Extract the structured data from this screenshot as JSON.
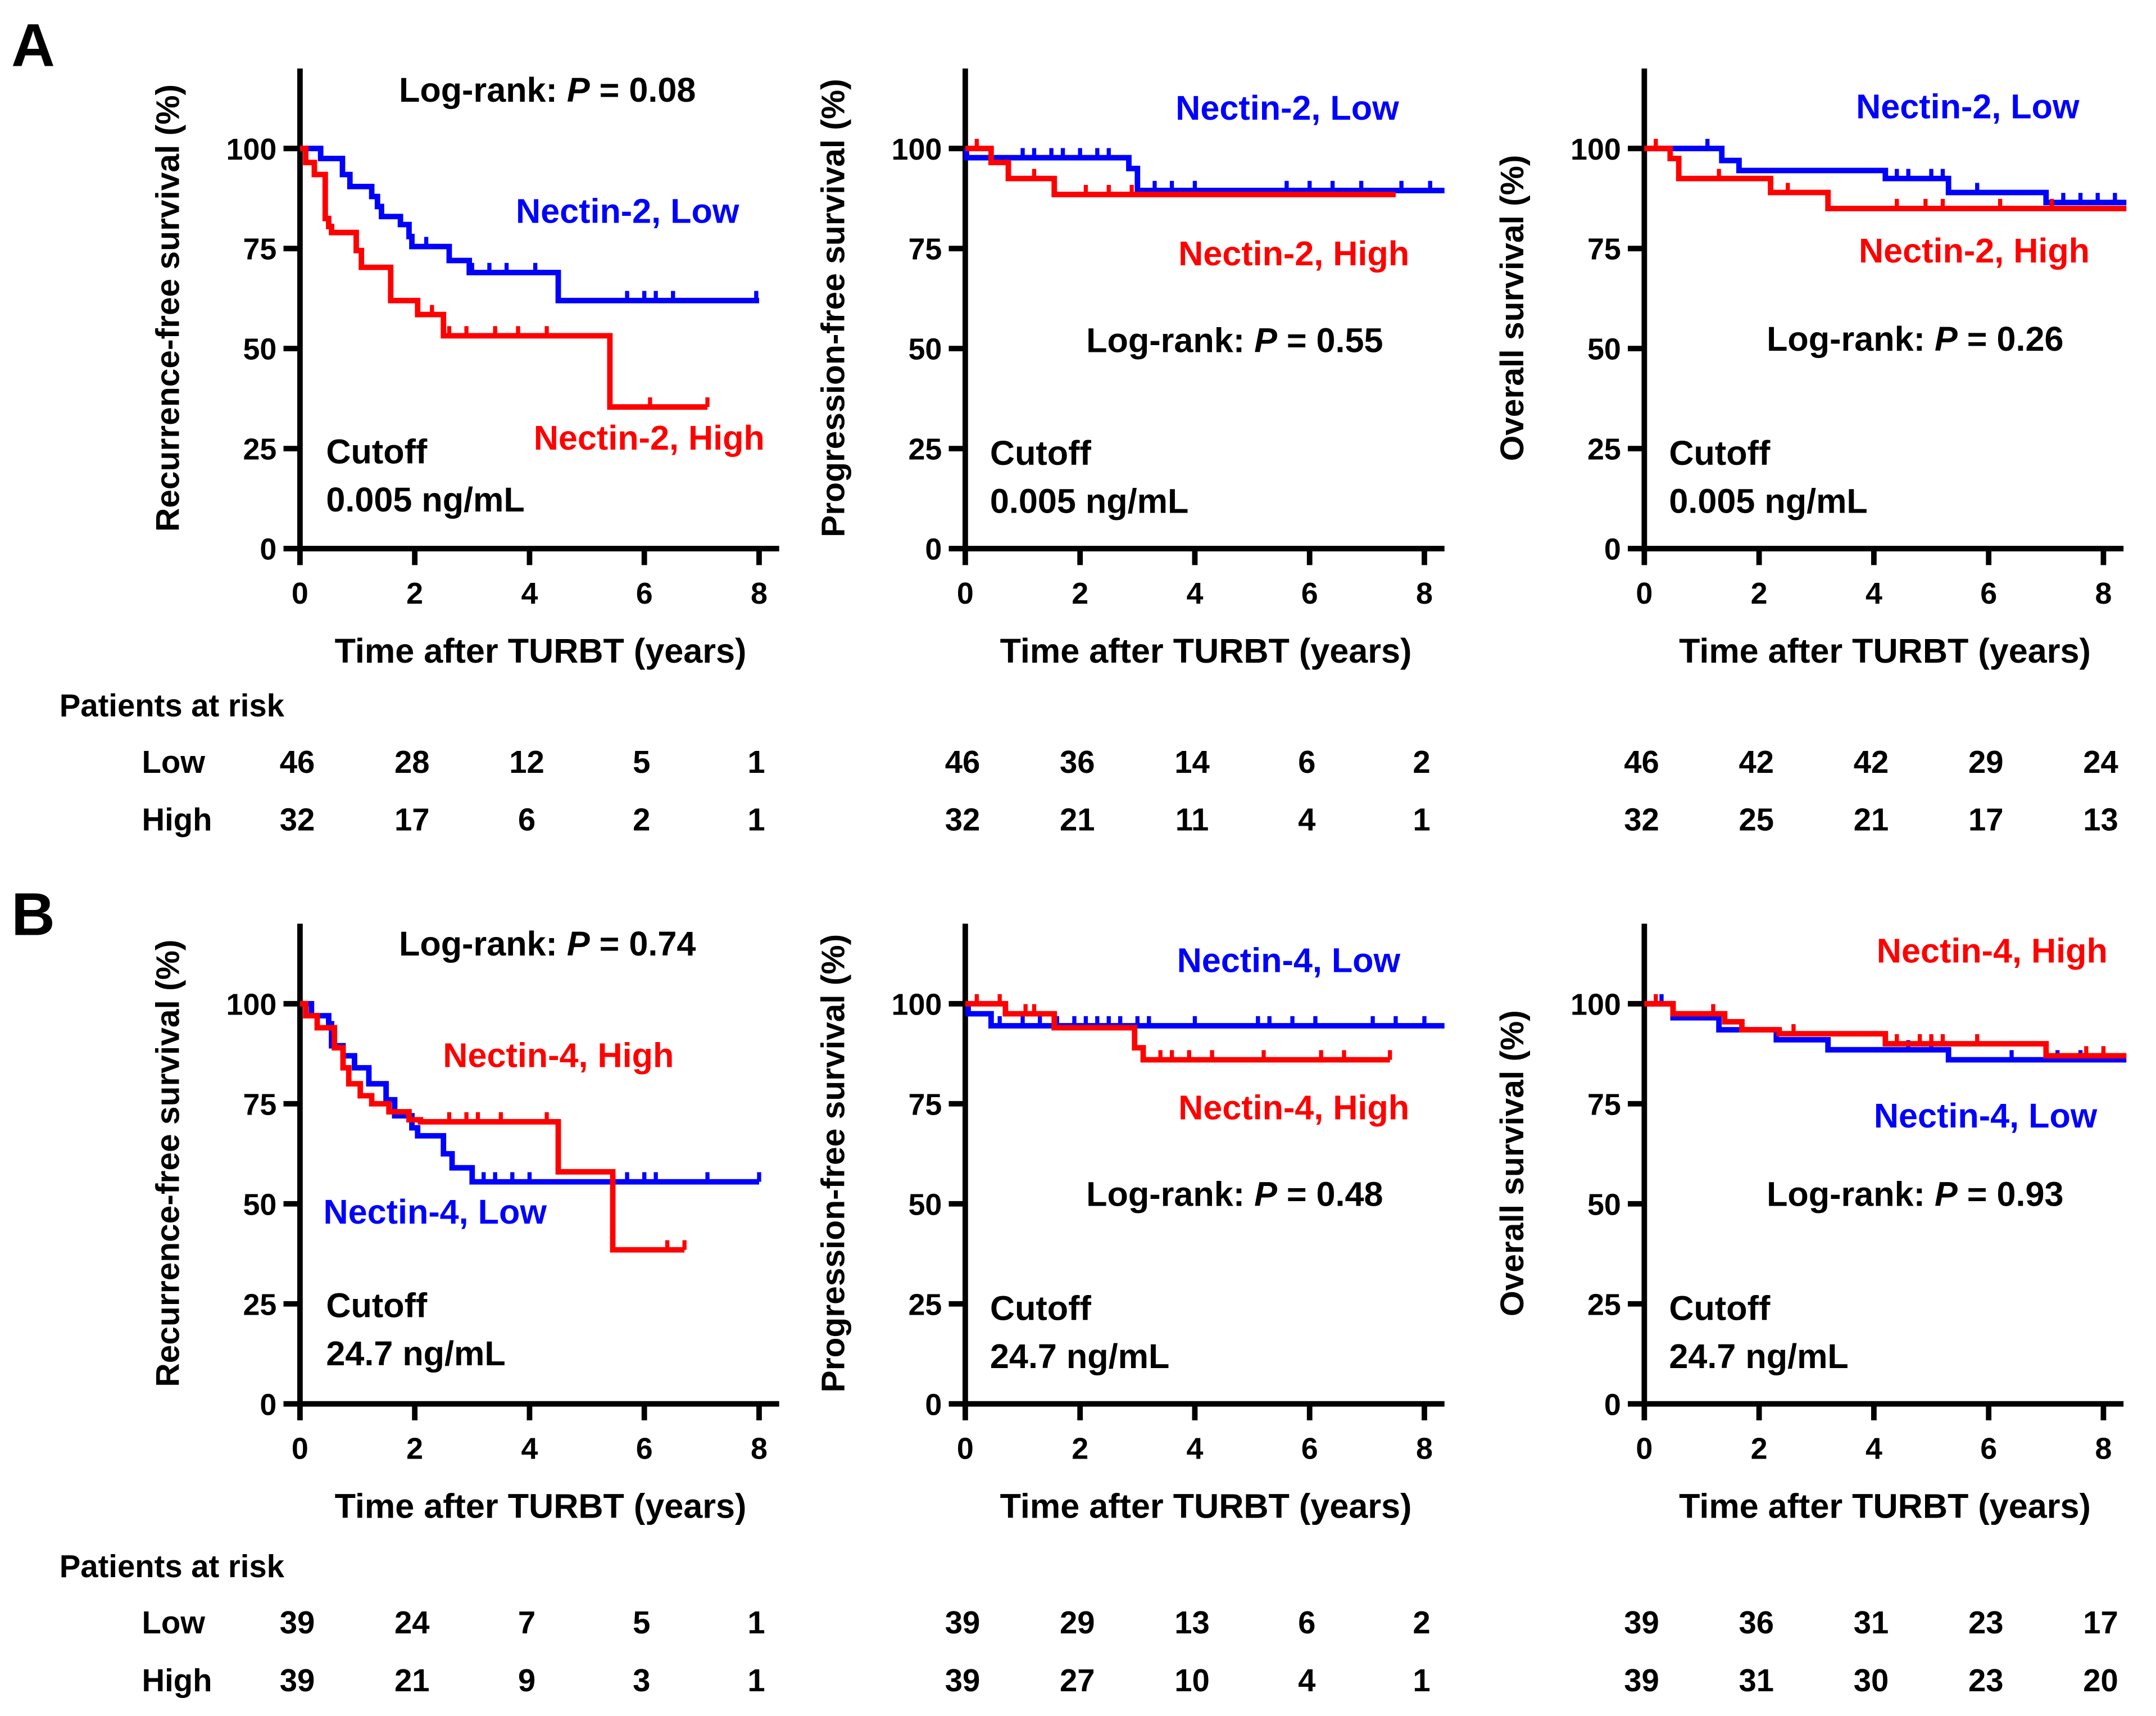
{
  "colors": {
    "low": "#0000ff",
    "high": "#ff0000",
    "axis": "#000000"
  },
  "panel_letters": [
    "A",
    "B"
  ],
  "chart_data": [
    {
      "type": "line",
      "row": 0,
      "col": 0,
      "ylabel": "Recurrence-free survival (%)",
      "xlabel": "Time after TURBT (years)",
      "xlim": [
        0,
        8.35
      ],
      "ylim": [
        0,
        120
      ],
      "xticks": [
        "0",
        "2",
        "4",
        "6",
        "8"
      ],
      "yticks": [
        "0",
        "25",
        "50",
        "75",
        "100"
      ],
      "logrank": {
        "prefix": "Log-rank: ",
        "p": "P",
        "suffix": " = 0.08"
      },
      "cutoff": [
        "Cutoff",
        "0.005 ng/mL"
      ],
      "series": [
        {
          "name": "Nectin-2, Low",
          "group": "low",
          "steps": [
            [
              0,
              100
            ],
            [
              0.36,
              97.5
            ],
            [
              0.74,
              93.5
            ],
            [
              0.87,
              90.5
            ],
            [
              1.25,
              88
            ],
            [
              1.35,
              85.5
            ],
            [
              1.42,
              83
            ],
            [
              1.75,
              81
            ],
            [
              1.9,
              78
            ],
            [
              1.95,
              75.5
            ],
            [
              2.6,
              72
            ],
            [
              2.95,
              69
            ],
            [
              4.5,
              62
            ]
          ],
          "end": 8.0,
          "censored": [
            2.2,
            2.6,
            3.0,
            3.3,
            3.6,
            4.1,
            5.7,
            6.0,
            6.2,
            6.5,
            7.95
          ]
        },
        {
          "name": "Nectin-2, High",
          "group": "high",
          "steps": [
            [
              0,
              100
            ],
            [
              0.1,
              96.5
            ],
            [
              0.25,
              93.5
            ],
            [
              0.44,
              82.5
            ],
            [
              0.5,
              80.5
            ],
            [
              0.55,
              79
            ],
            [
              0.98,
              74.5
            ],
            [
              1.07,
              70.3
            ],
            [
              1.58,
              62
            ],
            [
              2.05,
              58.5
            ],
            [
              2.5,
              53.2
            ],
            [
              5.4,
              35.4
            ]
          ],
          "end": 7.1,
          "censored": [
            2.3,
            2.6,
            2.9,
            3.4,
            3.8,
            4.3,
            6.1,
            7.1
          ]
        }
      ]
    },
    {
      "type": "line",
      "row": 0,
      "col": 1,
      "ylabel": "Progression-free survival (%)",
      "xlabel": "Time after TURBT (years)",
      "xlim": [
        0,
        8.35
      ],
      "ylim": [
        0,
        120
      ],
      "xticks": [
        "0",
        "2",
        "4",
        "6",
        "8"
      ],
      "yticks": [
        "0",
        "25",
        "50",
        "75",
        "100"
      ],
      "logrank": {
        "prefix": "Log-rank: ",
        "p": "P",
        "suffix": " = 0.55"
      },
      "cutoff": [
        "Cutoff",
        "0.005 ng/mL"
      ],
      "series": [
        {
          "name": "Nectin-2, Low",
          "group": "low",
          "steps": [
            [
              0,
              100
            ],
            [
              0.02,
              97.7
            ],
            [
              2.85,
              95
            ],
            [
              3.0,
              89.5
            ]
          ],
          "end": 8.35,
          "censored": [
            1.0,
            1.2,
            1.5,
            1.7,
            2.0,
            2.3,
            2.5,
            3.3,
            3.6,
            4.0,
            5.6,
            6.0,
            6.4,
            6.9,
            7.6,
            8.1
          ]
        },
        {
          "name": "Nectin-2, High",
          "group": "high",
          "steps": [
            [
              0,
              100
            ],
            [
              0.45,
              96.5
            ],
            [
              0.75,
              92.5
            ],
            [
              1.55,
              88.5
            ]
          ],
          "end": 7.5,
          "censored": [
            0.2,
            1.2,
            2.1,
            2.5,
            2.9
          ]
        }
      ]
    },
    {
      "type": "line",
      "row": 0,
      "col": 2,
      "ylabel": "Overall survival (%)",
      "xlabel": "Time after TURBT (years)",
      "xlim": [
        0,
        8.35
      ],
      "ylim": [
        0,
        120
      ],
      "xticks": [
        "0",
        "2",
        "4",
        "6",
        "8"
      ],
      "yticks": [
        "0",
        "25",
        "50",
        "75",
        "100"
      ],
      "logrank": {
        "prefix": "Log-rank: ",
        "p": "P",
        "suffix": " = 0.26"
      },
      "cutoff": [
        "Cutoff",
        "0.005 ng/mL"
      ],
      "series": [
        {
          "name": "Nectin-2, Low",
          "group": "low",
          "steps": [
            [
              0,
              100
            ],
            [
              1.35,
              97
            ],
            [
              1.65,
              94.5
            ],
            [
              4.2,
              92.5
            ],
            [
              5.3,
              89
            ],
            [
              7.0,
              86.5
            ]
          ],
          "end": 8.4,
          "censored": [
            1.1,
            4.4,
            4.6,
            5.0,
            5.2,
            5.8,
            7.3,
            7.6,
            7.9,
            8.2
          ]
        },
        {
          "name": "Nectin-2, High",
          "group": "high",
          "steps": [
            [
              0,
              100
            ],
            [
              0.45,
              97.5
            ],
            [
              0.6,
              92.5
            ],
            [
              2.2,
              89
            ],
            [
              3.2,
              85
            ]
          ],
          "end": 8.4,
          "censored": [
            0.2,
            1.3,
            2.5,
            4.4,
            4.9,
            5.2,
            6.2,
            7.1
          ]
        }
      ]
    },
    {
      "type": "line",
      "row": 1,
      "col": 0,
      "ylabel": "Recurrence-free survival (%)",
      "xlabel": "Time after TURBT (years)",
      "xlim": [
        0,
        8.35
      ],
      "ylim": [
        0,
        120
      ],
      "xticks": [
        "0",
        "2",
        "4",
        "6",
        "8"
      ],
      "yticks": [
        "0",
        "25",
        "50",
        "75",
        "100"
      ],
      "logrank": {
        "prefix": "Log-rank: ",
        "p": "P",
        "suffix": " = 0.74"
      },
      "cutoff": [
        "Cutoff",
        "24.7 ng/mL"
      ],
      "series": [
        {
          "name": "Nectin-4, Low",
          "group": "low",
          "steps": [
            [
              0,
              100
            ],
            [
              0.2,
              97
            ],
            [
              0.5,
              95
            ],
            [
              0.55,
              89.5
            ],
            [
              0.75,
              87
            ],
            [
              0.95,
              84
            ],
            [
              1.2,
              80
            ],
            [
              1.5,
              76
            ],
            [
              1.65,
              72
            ],
            [
              1.95,
              69
            ],
            [
              2.05,
              67
            ],
            [
              2.5,
              62.5
            ],
            [
              2.65,
              59
            ],
            [
              3.0,
              55.5
            ]
          ],
          "end": 8.0,
          "censored": [
            3.2,
            3.4,
            3.7,
            4.0,
            5.7,
            6.0,
            6.2,
            7.1,
            8.0
          ]
        },
        {
          "name": "Nectin-4, High",
          "group": "high",
          "steps": [
            [
              0,
              100
            ],
            [
              0.1,
              97
            ],
            [
              0.3,
              94
            ],
            [
              0.6,
              89
            ],
            [
              0.75,
              84
            ],
            [
              0.85,
              80
            ],
            [
              1.05,
              77
            ],
            [
              1.25,
              75
            ],
            [
              1.55,
              73
            ],
            [
              1.9,
              71
            ],
            [
              2.1,
              70.5
            ],
            [
              4.5,
              58
            ],
            [
              5.45,
              38.5
            ]
          ],
          "end": 6.7,
          "censored": [
            2.6,
            2.9,
            3.1,
            3.5,
            4.3,
            6.4,
            6.7
          ]
        }
      ]
    },
    {
      "type": "line",
      "row": 1,
      "col": 1,
      "ylabel": "Progression-free survival (%)",
      "xlabel": "Time after TURBT (years)",
      "xlim": [
        0,
        8.35
      ],
      "ylim": [
        0,
        120
      ],
      "xticks": [
        "0",
        "2",
        "4",
        "6",
        "8"
      ],
      "yticks": [
        "0",
        "25",
        "50",
        "75",
        "100"
      ],
      "logrank": {
        "prefix": "Log-rank: ",
        "p": "P",
        "suffix": " = 0.48"
      },
      "cutoff": [
        "Cutoff",
        "24.7 ng/mL"
      ],
      "series": [
        {
          "name": "Nectin-4, Low",
          "group": "low",
          "steps": [
            [
              0,
              100
            ],
            [
              0.05,
              97.5
            ],
            [
              0.45,
              94.5
            ]
          ],
          "end": 8.35,
          "censored": [
            0.6,
            1.0,
            1.3,
            1.6,
            1.9,
            2.1,
            2.3,
            2.5,
            2.7,
            3.0,
            3.2,
            4.0,
            5.1,
            5.3,
            5.7,
            6.1,
            7.1,
            7.5,
            8.0
          ]
        },
        {
          "name": "Nectin-4, High",
          "group": "high",
          "steps": [
            [
              0,
              100
            ],
            [
              0.7,
              97.5
            ],
            [
              1.55,
              94
            ],
            [
              2.95,
              89
            ],
            [
              3.1,
              86
            ]
          ],
          "end": 7.4,
          "censored": [
            0.2,
            0.6,
            1.05,
            1.2,
            3.4,
            3.6,
            3.9,
            4.3,
            5.2,
            6.2,
            6.6,
            7.4
          ]
        }
      ]
    },
    {
      "type": "line",
      "row": 1,
      "col": 2,
      "ylabel": "Overall survival (%)",
      "xlabel": "Time after TURBT (years)",
      "xlim": [
        0,
        8.35
      ],
      "ylim": [
        0,
        120
      ],
      "xticks": [
        "0",
        "2",
        "4",
        "6",
        "8"
      ],
      "yticks": [
        "0",
        "25",
        "50",
        "75",
        "100"
      ],
      "logrank": {
        "prefix": "Log-rank: ",
        "p": "P",
        "suffix": " = 0.93"
      },
      "cutoff": [
        "Cutoff",
        "24.7 ng/mL"
      ],
      "series": [
        {
          "name": "Nectin-4, Low",
          "group": "low",
          "steps": [
            [
              0,
              100
            ],
            [
              0.5,
              96.5
            ],
            [
              1.3,
              93.5
            ],
            [
              2.3,
              91
            ],
            [
              3.2,
              88.5
            ],
            [
              5.3,
              86
            ]
          ],
          "end": 8.4,
          "censored": [
            0.3,
            4.6,
            5.0,
            6.4,
            7.2,
            7.6,
            8.0
          ]
        },
        {
          "name": "Nectin-4, High",
          "group": "high",
          "steps": [
            [
              0,
              100
            ],
            [
              0.5,
              97.5
            ],
            [
              1.4,
              95.5
            ],
            [
              1.7,
              93.5
            ],
            [
              2.35,
              92.5
            ],
            [
              4.2,
              90
            ],
            [
              7.0,
              87
            ]
          ],
          "end": 8.4,
          "censored": [
            0.2,
            1.2,
            1.4,
            2.6,
            4.4,
            4.8,
            5.0,
            5.2,
            5.8,
            7.0,
            7.7,
            8.0
          ]
        }
      ]
    }
  ],
  "risk_tables": [
    {
      "title": "Patients at risk",
      "row_labels": [
        "Low",
        "High"
      ],
      "panels": [
        {
          "low": [
            "46",
            "28",
            "12",
            "5",
            "1"
          ],
          "high": [
            "32",
            "17",
            "6",
            "2",
            "1"
          ]
        },
        {
          "low": [
            "46",
            "36",
            "14",
            "6",
            "2"
          ],
          "high": [
            "32",
            "21",
            "11",
            "4",
            "1"
          ]
        },
        {
          "low": [
            "46",
            "42",
            "42",
            "29",
            "24"
          ],
          "high": [
            "32",
            "25",
            "21",
            "17",
            "13"
          ]
        }
      ]
    },
    {
      "title": "Patients at risk",
      "row_labels": [
        "Low",
        "High"
      ],
      "panels": [
        {
          "low": [
            "39",
            "24",
            "7",
            "5",
            "1"
          ],
          "high": [
            "39",
            "21",
            "9",
            "3",
            "1"
          ]
        },
        {
          "low": [
            "39",
            "29",
            "13",
            "6",
            "2"
          ],
          "high": [
            "39",
            "27",
            "10",
            "4",
            "1"
          ]
        },
        {
          "low": [
            "39",
            "36",
            "31",
            "23",
            "17"
          ],
          "high": [
            "39",
            "31",
            "30",
            "23",
            "20"
          ]
        }
      ]
    }
  ]
}
